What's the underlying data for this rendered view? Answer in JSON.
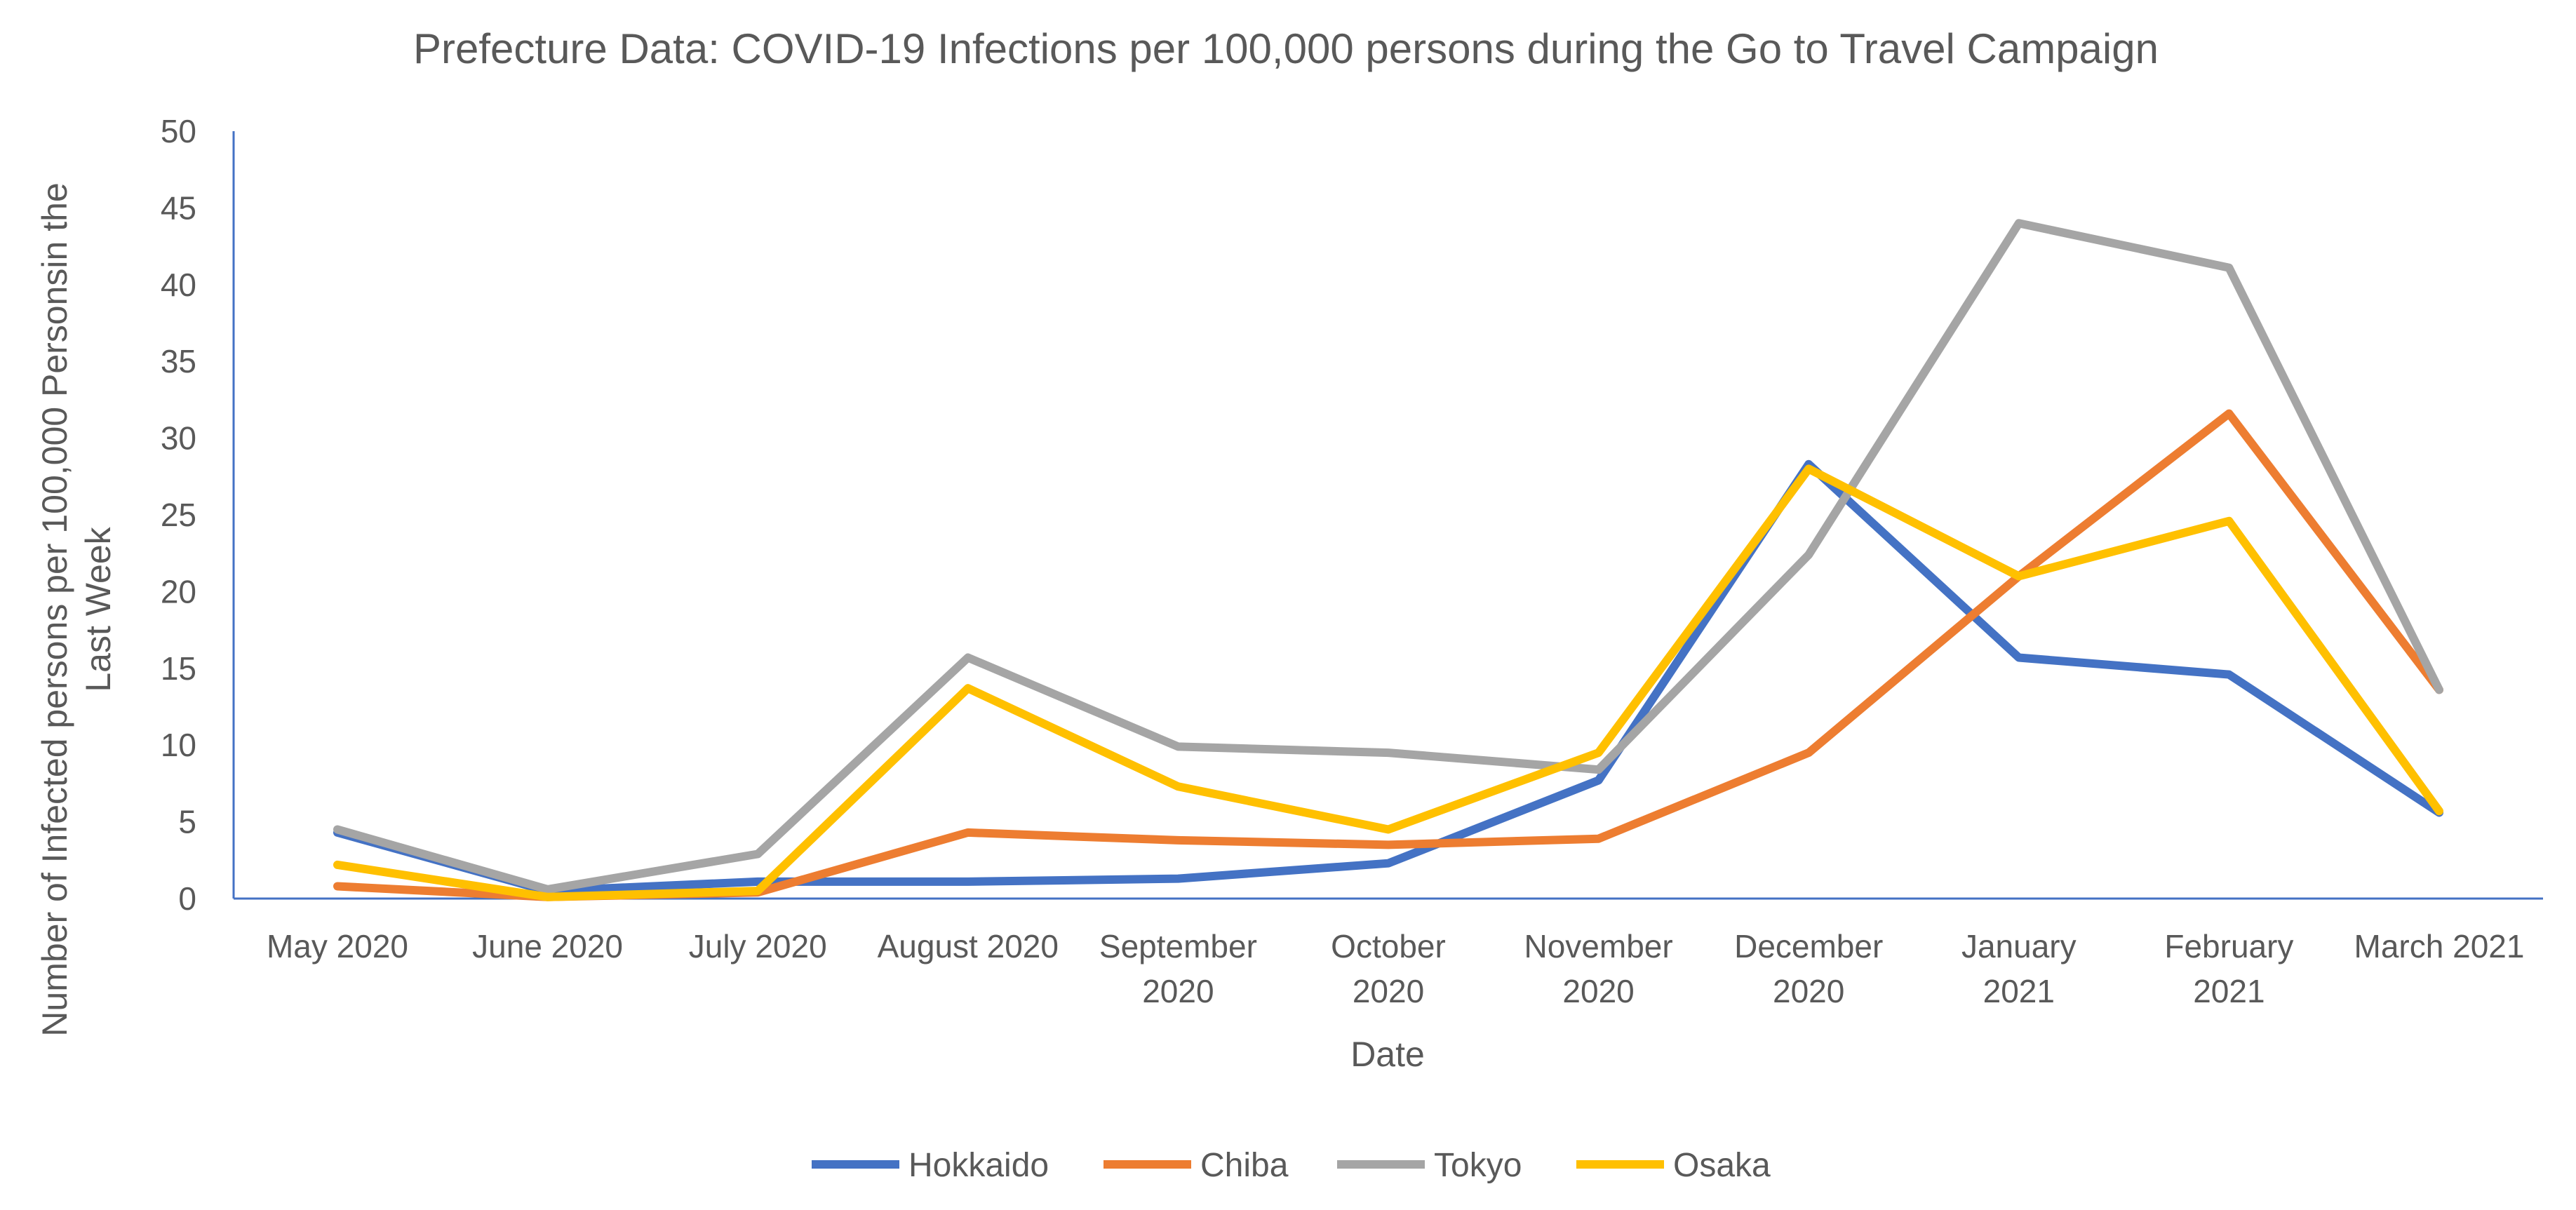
{
  "chart_data": {
    "type": "line",
    "title": "Prefecture Data: COVID-19 Infections per 100,000 persons during the Go to Travel Campaign",
    "xlabel": "Date",
    "ylabel_lines": [
      "Number of Infected persons per 100,000 Personsin the",
      "Last Week"
    ],
    "ylim": [
      0,
      50
    ],
    "yticks": [
      0,
      5,
      10,
      15,
      20,
      25,
      30,
      35,
      40,
      45,
      50
    ],
    "categories": [
      [
        "May  2020"
      ],
      [
        "June 2020"
      ],
      [
        "July 2020"
      ],
      [
        "August 2020"
      ],
      [
        "September",
        "2020"
      ],
      [
        "October",
        "2020"
      ],
      [
        "November",
        "2020"
      ],
      [
        "December",
        "2020"
      ],
      [
        "January",
        "2021"
      ],
      [
        "February",
        "2021"
      ],
      [
        "March 2021"
      ]
    ],
    "series": [
      {
        "name": "Hokkaido",
        "color": "#4472C4",
        "values": [
          4.3,
          0.5,
          1.1,
          1.1,
          1.3,
          2.3,
          7.7,
          28.3,
          15.7,
          14.6,
          5.6
        ]
      },
      {
        "name": "Chiba",
        "color": "#ED7D31",
        "values": [
          0.8,
          0.1,
          0.4,
          4.3,
          3.8,
          3.5,
          3.9,
          9.5,
          21.0,
          31.6,
          13.6
        ]
      },
      {
        "name": "Tokyo",
        "color": "#A5A5A5",
        "values": [
          4.5,
          0.6,
          2.9,
          15.7,
          9.9,
          9.5,
          8.4,
          22.4,
          44.0,
          41.1,
          13.6
        ]
      },
      {
        "name": "Osaka",
        "color": "#FFC000",
        "values": [
          2.2,
          0.1,
          0.5,
          13.7,
          7.3,
          4.5,
          9.5,
          28.0,
          21.0,
          24.6,
          5.7
        ]
      }
    ],
    "legend_position": "bottom",
    "grid": false
  }
}
